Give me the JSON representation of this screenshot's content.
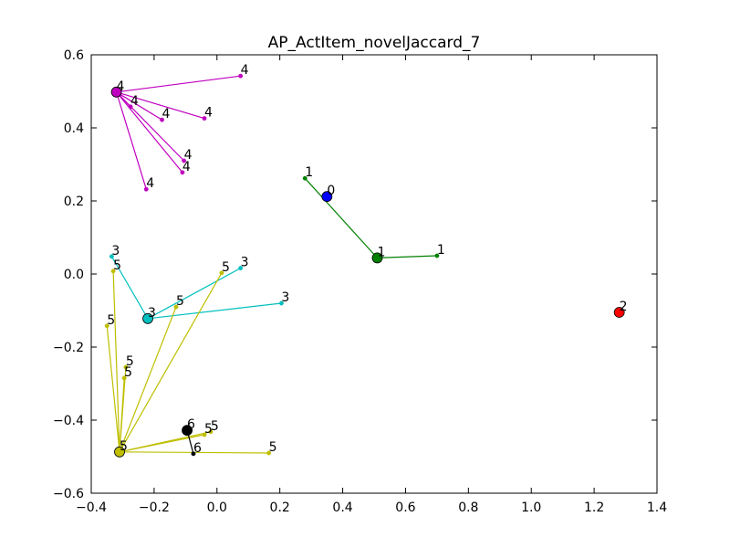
{
  "chart_data": {
    "type": "scatter",
    "title": "AP_ActItem_novelJaccard_7",
    "xlabel": "",
    "ylabel": "",
    "xlim": [
      -0.4,
      1.4
    ],
    "ylim": [
      -0.6,
      0.6
    ],
    "x_ticks": [
      -0.4,
      -0.2,
      0.0,
      0.2,
      0.4,
      0.6,
      0.8,
      1.0,
      1.2,
      1.4
    ],
    "x_tick_labels": [
      "−0.4",
      "−0.2",
      "0.0",
      "0.2",
      "0.4",
      "0.6",
      "0.8",
      "1.0",
      "1.2",
      "1.4"
    ],
    "y_ticks": [
      -0.6,
      -0.4,
      -0.2,
      0.0,
      0.2,
      0.4,
      0.6
    ],
    "y_tick_labels": [
      "−0.6",
      "−0.4",
      "−0.2",
      "0.0",
      "0.2",
      "0.4",
      "0.6"
    ],
    "grid": false,
    "clusters": [
      {
        "label": "0",
        "color": "#0000ff",
        "center": [
          0.35,
          0.212
        ],
        "members": []
      },
      {
        "label": "1",
        "color": "#008000",
        "center": [
          0.51,
          0.044
        ],
        "members": [
          [
            0.28,
            0.262
          ],
          [
            0.7,
            0.05
          ]
        ]
      },
      {
        "label": "2",
        "color": "#ff0000",
        "center": [
          1.28,
          -0.105
        ],
        "members": []
      },
      {
        "label": "3",
        "color": "#00bfbf",
        "center": [
          -0.22,
          -0.122
        ],
        "members": [
          [
            -0.335,
            0.048
          ],
          [
            0.075,
            0.016
          ],
          [
            0.205,
            -0.08
          ]
        ]
      },
      {
        "label": "4",
        "color": "#bf00bf",
        "center": [
          -0.32,
          0.498
        ],
        "members": [
          [
            0.075,
            0.542
          ],
          [
            -0.275,
            0.458
          ],
          [
            -0.175,
            0.422
          ],
          [
            -0.04,
            0.426
          ],
          [
            -0.105,
            0.31
          ],
          [
            -0.11,
            0.278
          ],
          [
            -0.225,
            0.232
          ]
        ]
      },
      {
        "label": "5",
        "color": "#bfbf00",
        "center": [
          -0.31,
          -0.487
        ],
        "members": [
          [
            -0.33,
            0.008
          ],
          [
            -0.35,
            -0.142
          ],
          [
            -0.29,
            -0.255
          ],
          [
            -0.295,
            -0.285
          ],
          [
            -0.13,
            -0.09
          ],
          [
            0.015,
            0.003
          ],
          [
            -0.04,
            -0.44
          ],
          [
            -0.02,
            -0.432
          ],
          [
            0.165,
            -0.49
          ]
        ]
      },
      {
        "label": "6",
        "color": "#000000",
        "center": [
          -0.095,
          -0.428
        ],
        "members": [
          [
            -0.075,
            -0.492
          ]
        ]
      }
    ]
  }
}
